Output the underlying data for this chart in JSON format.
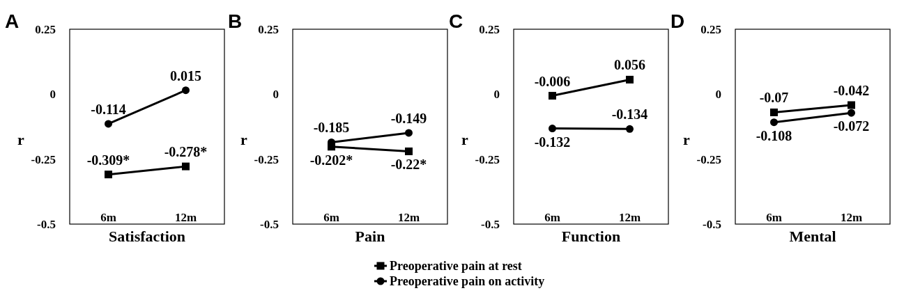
{
  "chart_data": [
    {
      "type": "line",
      "title": "A",
      "xlabel": "Satisfaction",
      "ylabel": "r",
      "categories": [
        "6m",
        "12m"
      ],
      "ylim": [
        -0.5,
        0.25
      ],
      "yticks": [
        -0.5,
        -0.25,
        0,
        0.25
      ],
      "legend": "bottom",
      "series": [
        {
          "name": "Preoperative pain at rest",
          "color": "#000000",
          "marker": "square",
          "values": [
            -0.309,
            -0.278
          ],
          "value_labels": [
            "-0.309*",
            "-0.278*"
          ]
        },
        {
          "name": "Preoperative pain on activity",
          "color": "#000000",
          "marker": "circle",
          "values": [
            -0.114,
            0.015
          ],
          "value_labels": [
            "-0.114",
            "0.015"
          ]
        }
      ]
    },
    {
      "type": "line",
      "title": "B",
      "xlabel": "Pain",
      "ylabel": "r",
      "categories": [
        "6m",
        "12m"
      ],
      "ylim": [
        -0.5,
        0.25
      ],
      "yticks": [
        -0.5,
        -0.25,
        0,
        0.25
      ],
      "series": [
        {
          "color": "#000000",
          "marker": "square",
          "values": [
            -0.202,
            -0.22
          ],
          "value_labels": [
            "-0.202*",
            "-0.22*"
          ]
        },
        {
          "color": "#000000",
          "marker": "circle",
          "values": [
            -0.185,
            -0.149
          ],
          "value_labels": [
            "-0.185",
            "-0.149"
          ]
        }
      ]
    },
    {
      "type": "line",
      "title": "C",
      "xlabel": "Function",
      "ylabel": "r",
      "categories": [
        "6m",
        "12m"
      ],
      "ylim": [
        -0.5,
        0.25
      ],
      "yticks": [
        -0.5,
        -0.25,
        0,
        0.25
      ],
      "series": [
        {
          "color": "#000000",
          "marker": "square",
          "values": [
            -0.006,
            0.056
          ],
          "value_labels": [
            "-0.006",
            "0.056"
          ]
        },
        {
          "color": "#000000",
          "marker": "circle",
          "values": [
            -0.132,
            -0.134
          ],
          "value_labels": [
            "-0.132",
            "-0.134"
          ]
        }
      ]
    },
    {
      "type": "line",
      "title": "D",
      "xlabel": "Mental",
      "ylabel": "r",
      "categories": [
        "6m",
        "12m"
      ],
      "ylim": [
        -0.5,
        0.25
      ],
      "yticks": [
        -0.5,
        -0.25,
        0,
        0.25
      ],
      "series": [
        {
          "color": "#000000",
          "marker": "square",
          "values": [
            -0.07,
            -0.042
          ],
          "value_labels": [
            "-0.07",
            "-0.042"
          ]
        },
        {
          "color": "#000000",
          "marker": "circle",
          "values": [
            -0.108,
            -0.072
          ],
          "value_labels": [
            "-0.108",
            "-0.072"
          ]
        }
      ]
    }
  ]
}
